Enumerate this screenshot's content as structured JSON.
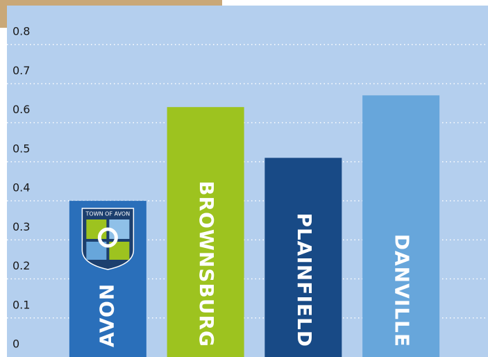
{
  "chart_data": {
    "type": "bar",
    "categories": [
      "AVON",
      "BROWNSBURG",
      "PLAINFIELD",
      "DANVILLE"
    ],
    "values": [
      0.4,
      0.64,
      0.51,
      0.67
    ],
    "colors": [
      "#2a6fba",
      "#9dc31f",
      "#184a86",
      "#67a6db"
    ],
    "ylim": [
      0,
      0.9
    ],
    "yticks": [
      0,
      0.1,
      0.2,
      0.3,
      0.4,
      0.5,
      0.6,
      0.7,
      0.8
    ],
    "grid": true,
    "annotations": [
      "TOWN OF AVON"
    ]
  }
}
